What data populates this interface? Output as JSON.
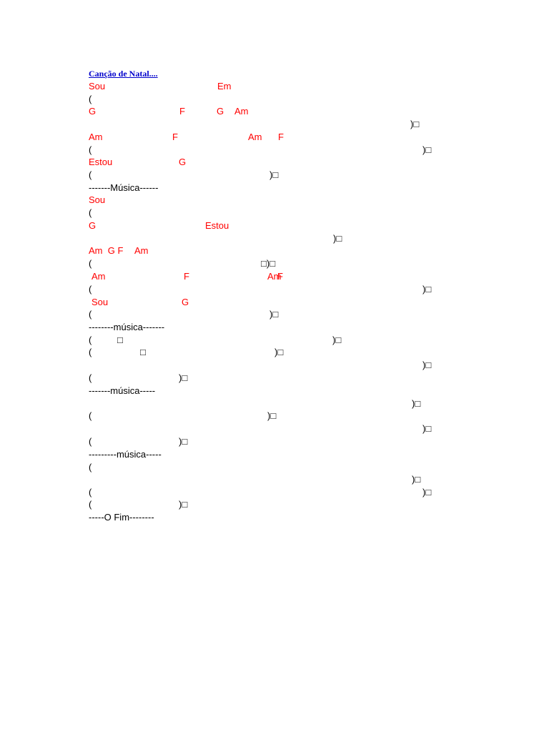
{
  "document": {
    "title": "Canção de Natal....",
    "colors": {
      "chord": "#ff0000",
      "title": "#0000cc",
      "text": "#000000"
    },
    "box_glyph": "□",
    "items": [
      "Sou",
      "Em",
      "(",
      "G",
      "F",
      "G",
      "Am",
      ")",
      "Am",
      "F",
      "Am",
      "F",
      "(",
      ")",
      "Estou",
      "G",
      "(",
      ")",
      "-------Música------",
      "Sou",
      "(",
      "G",
      "Estou",
      ")",
      "Am  G F",
      "Am",
      "(",
      ")",
      "Am",
      "F",
      "Am",
      "F",
      "(",
      ")",
      "Sou",
      "G",
      "(",
      ")",
      "--------música-------",
      "(",
      ")",
      "(",
      ")",
      ")",
      "(",
      ")",
      "-------música-----",
      ")",
      "(",
      ")",
      ")",
      "(",
      ")",
      "---------música-----",
      "(",
      ")",
      "(",
      ")",
      "(",
      ")",
      "-----O Fim--------"
    ]
  }
}
